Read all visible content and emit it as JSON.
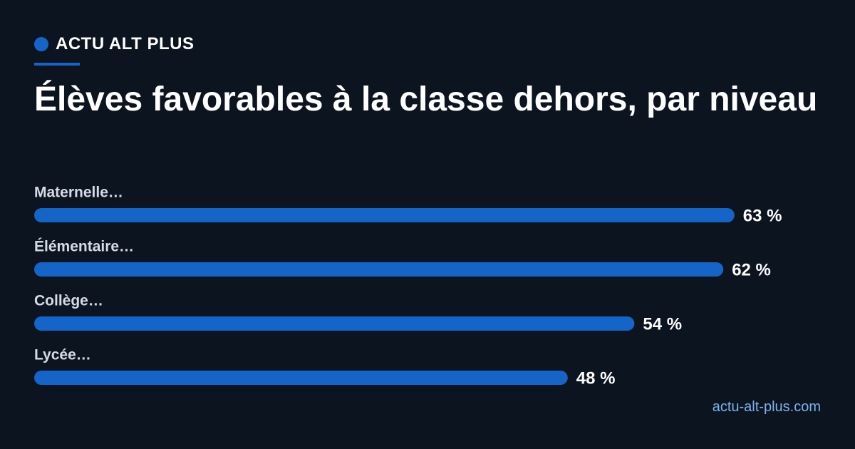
{
  "header": {
    "brand": "ACTU ALT PLUS",
    "title": "Élèves favorables à la classe dehors, par niveau"
  },
  "footer": {
    "source": "actu-alt-plus.com"
  },
  "colors": {
    "background": "#0c1420",
    "accent": "#1565c8",
    "link": "#7fb2ec",
    "label": "#d6dce6"
  },
  "chart_data": {
    "type": "bar",
    "orientation": "horizontal",
    "categories": [
      "Maternelle…",
      "Élémentaire…",
      "Collège…",
      "Lycée…"
    ],
    "values": [
      63,
      62,
      54,
      48
    ],
    "value_labels": [
      "63 %",
      "62 %",
      "54 %",
      "48 %"
    ],
    "unit": "%",
    "xlim": [
      0,
      100
    ],
    "grid": false,
    "legend": "none",
    "title": "Élèves favorables à la classe dehors, par niveau"
  }
}
